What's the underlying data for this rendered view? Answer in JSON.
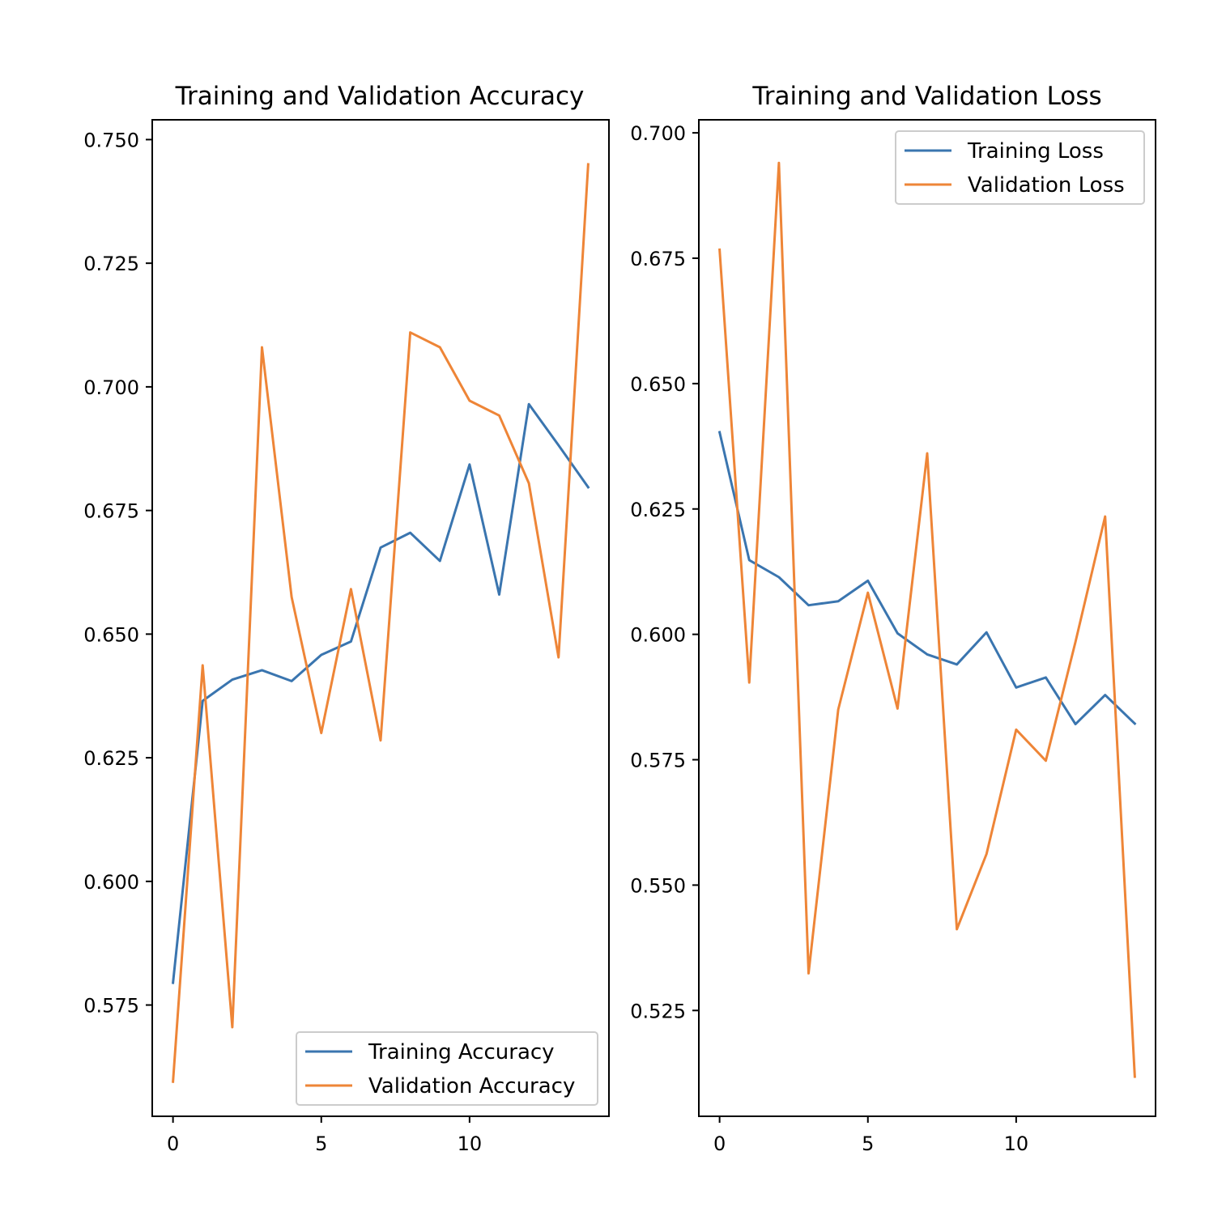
{
  "chart_data": [
    {
      "type": "line",
      "title": "Training and Validation Accuracy",
      "xlabel": "",
      "ylabel": "",
      "xlim": [
        -0.7,
        14.7
      ],
      "ylim": [
        0.5525,
        0.754
      ],
      "x_ticks": [
        0,
        5,
        10
      ],
      "y_ticks": [
        0.575,
        0.6,
        0.625,
        0.65,
        0.675,
        0.7,
        0.725,
        0.75
      ],
      "y_tick_labels": [
        "0.575",
        "0.600",
        "0.625",
        "0.650",
        "0.675",
        "0.700",
        "0.725",
        "0.750"
      ],
      "grid": false,
      "legend_position": "lower-right",
      "x": [
        0,
        1,
        2,
        3,
        4,
        5,
        6,
        7,
        8,
        9,
        10,
        11,
        12,
        13,
        14
      ],
      "series": [
        {
          "name": "Training Accuracy",
          "color": "#3a75af",
          "values": [
            0.5795,
            0.6365,
            0.6408,
            0.6427,
            0.6405,
            0.6458,
            0.6485,
            0.6675,
            0.6705,
            0.6648,
            0.6843,
            0.658,
            0.6965,
            0.6882,
            0.6797
          ]
        },
        {
          "name": "Validation Accuracy",
          "color": "#ee8537",
          "values": [
            0.5595,
            0.6437,
            0.5705,
            0.708,
            0.6575,
            0.63,
            0.6591,
            0.6285,
            0.711,
            0.708,
            0.6972,
            0.6942,
            0.6805,
            0.6453,
            0.745
          ]
        }
      ]
    },
    {
      "type": "line",
      "title": "Training and Validation Loss",
      "xlabel": "",
      "ylabel": "",
      "xlim": [
        -0.7,
        14.7
      ],
      "ylim": [
        0.5039,
        0.7026
      ],
      "x_ticks": [
        0,
        5,
        10
      ],
      "y_ticks": [
        0.525,
        0.55,
        0.575,
        0.6,
        0.625,
        0.65,
        0.675,
        0.7
      ],
      "y_tick_labels": [
        "0.525",
        "0.550",
        "0.575",
        "0.600",
        "0.625",
        "0.650",
        "0.675",
        "0.700"
      ],
      "grid": false,
      "legend_position": "top-right",
      "x": [
        0,
        1,
        2,
        3,
        4,
        5,
        6,
        7,
        8,
        9,
        10,
        11,
        12,
        13,
        14
      ],
      "series": [
        {
          "name": "Training Loss",
          "color": "#3a75af",
          "values": [
            0.6403,
            0.6148,
            0.6114,
            0.6058,
            0.6066,
            0.6107,
            0.6002,
            0.596,
            0.594,
            0.6004,
            0.5894,
            0.5914,
            0.5821,
            0.5879,
            0.5822
          ]
        },
        {
          "name": "Validation Loss",
          "color": "#ee8537",
          "values": [
            0.6767,
            0.5904,
            0.694,
            0.5324,
            0.585,
            0.6083,
            0.5852,
            0.6361,
            0.5412,
            0.5562,
            0.581,
            0.5748,
            0.5985,
            0.6235,
            0.5118
          ]
        }
      ]
    }
  ]
}
